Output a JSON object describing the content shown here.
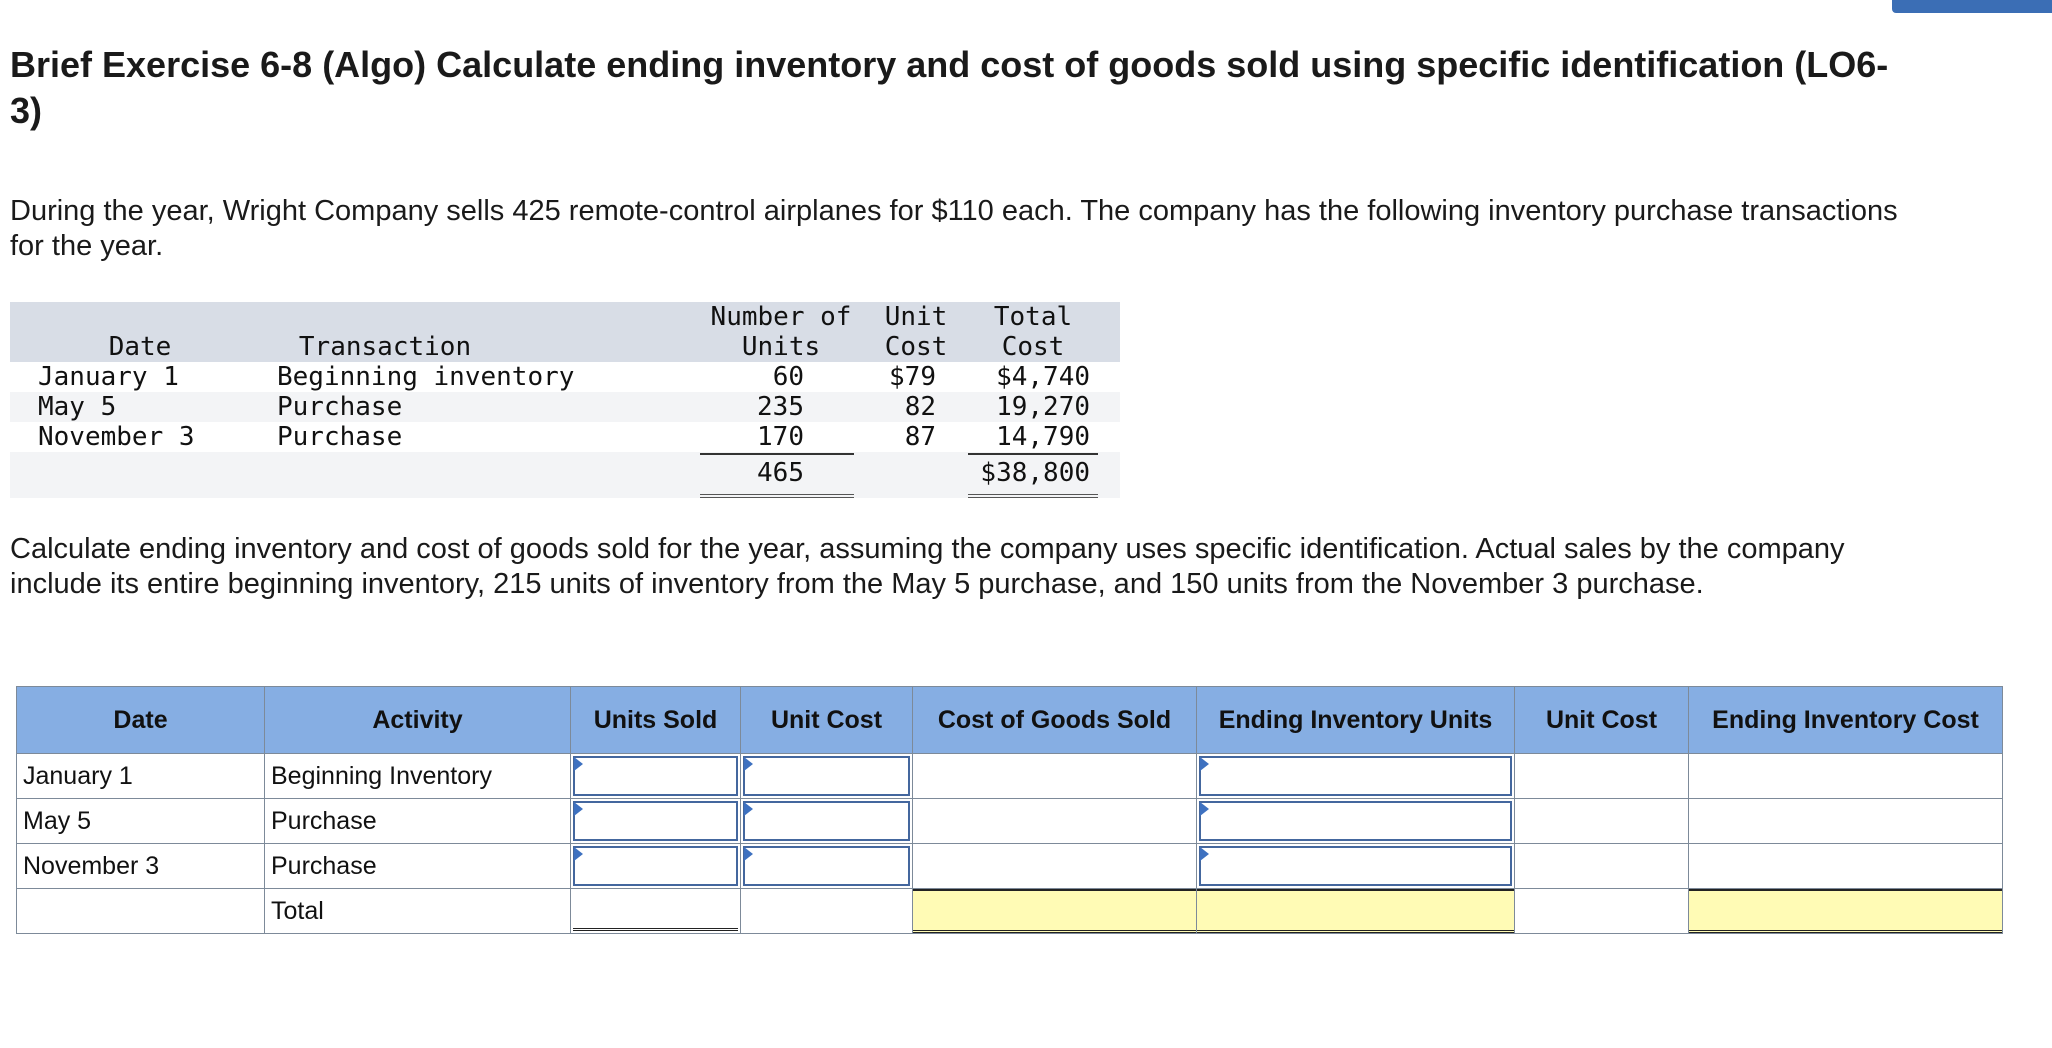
{
  "title": "Brief Exercise 6-8 (Algo) Calculate ending inventory and cost of goods sold using specific identification (LO6-3)",
  "intro": "During the year, Wright Company sells 425 remote-control airplanes for $110 each. The company has the following inventory purchase transactions for the year.",
  "given_table": {
    "headers": {
      "date": "Date",
      "transaction": "Transaction",
      "units_line1": "Number of",
      "units_line2": "Units",
      "unit_cost_line1": "Unit",
      "unit_cost_line2": "Cost",
      "total_cost_line1": "Total",
      "total_cost_line2": "Cost"
    },
    "rows": [
      {
        "date": "January 1",
        "transaction": "Beginning inventory",
        "units": "60",
        "unit_cost": "$79",
        "total_cost": "$4,740"
      },
      {
        "date": "May 5",
        "transaction": "Purchase",
        "units": "235",
        "unit_cost": "82",
        "total_cost": "19,270"
      },
      {
        "date": "November 3",
        "transaction": "Purchase",
        "units": "170",
        "unit_cost": "87",
        "total_cost": "14,790"
      }
    ],
    "totals": {
      "units": "465",
      "total_cost": "$38,800"
    }
  },
  "instructions": "Calculate ending inventory and cost of goods sold for the year, assuming the company uses specific identification. Actual sales by the company include its entire beginning inventory, 215 units of inventory from the May 5 purchase, and 150 units from the November 3 purchase.",
  "answer_table": {
    "headers": [
      "Date",
      "Activity",
      "Units Sold",
      "Unit Cost",
      "Cost of Goods Sold",
      "Ending Inventory Units",
      "Unit Cost",
      "Ending Inventory Cost"
    ],
    "rows": [
      {
        "date": "January 1",
        "activity": "Beginning Inventory"
      },
      {
        "date": "May 5",
        "activity": "Purchase"
      },
      {
        "date": "November 3",
        "activity": "Purchase"
      },
      {
        "date": "",
        "activity": "Total"
      }
    ]
  },
  "colors": {
    "header_blue": "#86aee3",
    "total_yellow": "#fffbb5",
    "input_border": "#44679e",
    "given_header_gray": "#d8dde6"
  }
}
